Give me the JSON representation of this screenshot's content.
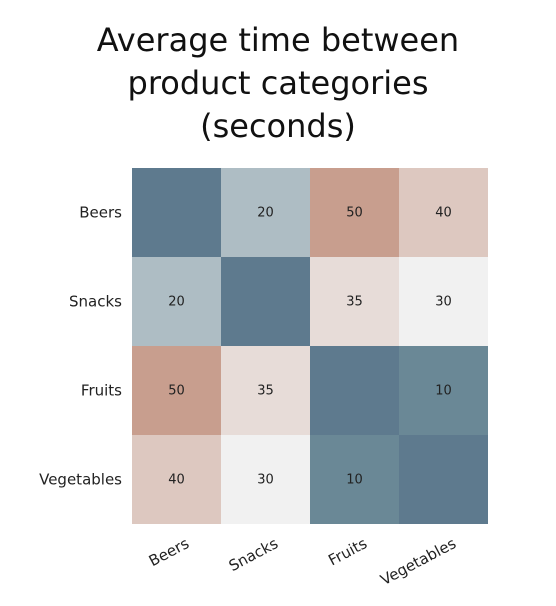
{
  "chart_data": {
    "type": "heatmap",
    "title_lines": [
      "Average time between",
      "product categories",
      "(seconds)"
    ],
    "x_categories": [
      "Beers",
      "Snacks",
      "Fruits",
      "Vegetables"
    ],
    "y_categories": [
      "Beers",
      "Snacks",
      "Fruits",
      "Vegetables"
    ],
    "values": [
      [
        null,
        20,
        50,
        40
      ],
      [
        20,
        null,
        35,
        30
      ],
      [
        50,
        35,
        null,
        10
      ],
      [
        40,
        30,
        10,
        null
      ]
    ],
    "colors": {
      "diagonal": "#5e7a8e",
      "low": "#6a8896",
      "mid": "#f1f1f1",
      "high": "#c89e8e"
    },
    "xlabel": "",
    "ylabel": ""
  }
}
